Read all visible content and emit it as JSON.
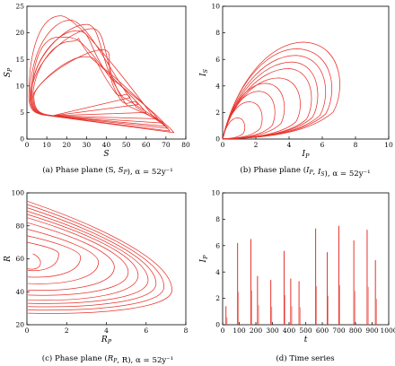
{
  "chart_data": [
    {
      "type": "line",
      "xlabel": "S",
      "ylabel": "S_P",
      "xlim": [
        0,
        80
      ],
      "ylim": [
        0,
        25
      ],
      "xticks": [
        "0",
        "10",
        "20",
        "30",
        "40",
        "50",
        "60",
        "70",
        "80"
      ],
      "yticks": [
        "0",
        "5",
        "10",
        "15",
        "20",
        "25"
      ],
      "caption": "(a) Phase plane (S, S_P), α = 52y⁻¹",
      "loops": [
        {
          "left_x": 1,
          "top_x": 17,
          "top_y": 23.2,
          "tip_x": 74,
          "tip_y": 1.2,
          "inner_x": 63,
          "inner_y": 4.5
        },
        {
          "left_x": 1.5,
          "top_x": 22,
          "top_y": 22.4,
          "tip_x": 72,
          "tip_y": 1.5,
          "inner_x": 55,
          "inner_y": 6
        },
        {
          "left_x": 2,
          "top_x": 30,
          "top_y": 21.6,
          "tip_x": 71,
          "tip_y": 2,
          "inner_x": 48,
          "inner_y": 8
        },
        {
          "left_x": 2,
          "top_x": 25,
          "top_y": 20.4,
          "tip_x": 69,
          "tip_y": 3,
          "inner_x": 42,
          "inner_y": 11.5
        },
        {
          "left_x": 2.5,
          "top_x": 16,
          "top_y": 19.2,
          "tip_x": 66,
          "tip_y": 3.8,
          "inner_x": 38,
          "inner_y": 13.5
        },
        {
          "left_x": 3,
          "top_x": 22,
          "top_y": 18.4,
          "tip_x": 60,
          "tip_y": 5,
          "inner_x": 33,
          "inner_y": 15
        },
        {
          "left_x": 2,
          "top_x": 33,
          "top_y": 20.8,
          "tip_x": 70,
          "tip_y": 2.4,
          "inner_x": 50,
          "inner_y": 6.5
        },
        {
          "left_x": 3,
          "top_x": 29,
          "top_y": 15.5,
          "tip_x": 52,
          "tip_y": 7.8,
          "inner_x": 45,
          "inner_y": 8.5
        },
        {
          "left_x": 3.5,
          "top_x": 38,
          "top_y": 16.8,
          "tip_x": 56,
          "tip_y": 6.5,
          "inner_x": 48,
          "inner_y": 7
        }
      ]
    },
    {
      "type": "line",
      "xlabel": "I_P",
      "ylabel": "I_S",
      "xlim": [
        0,
        10
      ],
      "ylim": [
        0,
        10
      ],
      "xticks": [
        "0",
        "2",
        "4",
        "6",
        "8",
        "10"
      ],
      "yticks": [
        "0",
        "2",
        "4",
        "6",
        "8",
        "10"
      ],
      "caption": "(b) Phase plane (I_P, I_S), α = 52y⁻¹",
      "loops": [
        {
          "peak": 7.3,
          "peak_x": 4.9,
          "max_x": 7.4
        },
        {
          "peak": 6.8,
          "peak_x": 4.5,
          "max_x": 6.9
        },
        {
          "peak": 6.3,
          "peak_x": 4.4,
          "max_x": 6.5
        },
        {
          "peak": 5.8,
          "peak_x": 4.2,
          "max_x": 6.0
        },
        {
          "peak": 5.3,
          "peak_x": 4.0,
          "max_x": 5.6
        },
        {
          "peak": 4.6,
          "peak_x": 3.4,
          "max_x": 4.9
        },
        {
          "peak": 4.2,
          "peak_x": 2.6,
          "max_x": 3.9
        },
        {
          "peak": 3.6,
          "peak_x": 2.2,
          "max_x": 3.3
        },
        {
          "peak": 2.8,
          "peak_x": 1.6,
          "max_x": 2.5
        },
        {
          "peak": 1.6,
          "peak_x": 0.9,
          "max_x": 1.4
        }
      ]
    },
    {
      "type": "line",
      "xlabel": "R_P",
      "ylabel": "R",
      "xlim": [
        0,
        8
      ],
      "ylim": [
        20,
        100
      ],
      "xticks": [
        "0",
        "2",
        "4",
        "6",
        "8"
      ],
      "yticks": [
        "20",
        "40",
        "60",
        "80",
        "100"
      ],
      "caption": "(c) Phase plane (R_P, R), α = 52y⁻¹",
      "loops": [
        {
          "top": 95,
          "bottom": 26,
          "tip_x": 7.3,
          "tip_y": 41
        },
        {
          "top": 93,
          "bottom": 28,
          "tip_x": 6.9,
          "tip_y": 43
        },
        {
          "top": 91,
          "bottom": 30,
          "tip_x": 6.5,
          "tip_y": 45
        },
        {
          "top": 89,
          "bottom": 32,
          "tip_x": 6.1,
          "tip_y": 47
        },
        {
          "top": 87,
          "bottom": 34,
          "tip_x": 5.6,
          "tip_y": 50
        },
        {
          "top": 85,
          "bottom": 37,
          "tip_x": 5.1,
          "tip_y": 52
        },
        {
          "top": 82,
          "bottom": 40,
          "tip_x": 4.4,
          "tip_y": 55
        },
        {
          "top": 78,
          "bottom": 44,
          "tip_x": 3.6,
          "tip_y": 58
        },
        {
          "top": 74,
          "bottom": 48,
          "tip_x": 2.7,
          "tip_y": 61
        },
        {
          "top": 70,
          "bottom": 52,
          "tip_x": 1.6,
          "tip_y": 63
        }
      ]
    },
    {
      "type": "bar",
      "xlabel": "t",
      "ylabel": "I_P",
      "xlim": [
        0,
        1000
      ],
      "ylim": [
        0,
        10
      ],
      "xticks": [
        "0",
        "100",
        "200",
        "300",
        "400",
        "500",
        "600",
        "700",
        "800",
        "900",
        "1000"
      ],
      "yticks": [
        "0",
        "2",
        "4",
        "6",
        "8",
        "10"
      ],
      "caption": "(d) Time series",
      "x": [
        20,
        90,
        170,
        210,
        290,
        370,
        410,
        460,
        560,
        630,
        700,
        790,
        870,
        920
      ],
      "values": [
        1.4,
        6.2,
        6.5,
        3.7,
        3.4,
        5.6,
        3.5,
        3.3,
        7.3,
        5.5,
        7.5,
        6.4,
        7.2,
        4.9
      ]
    }
  ]
}
